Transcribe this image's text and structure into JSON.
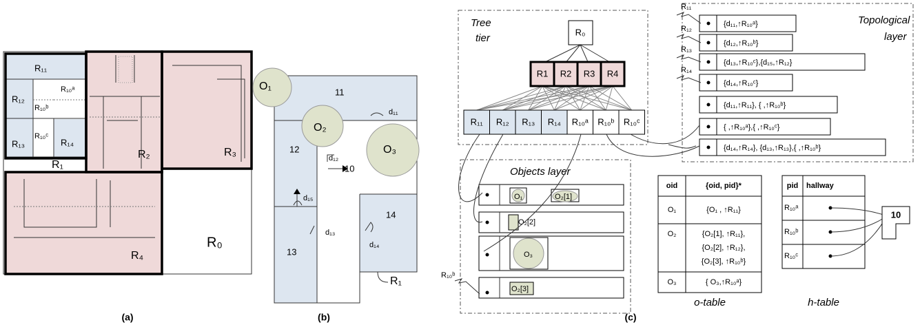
{
  "panel_a": {
    "caption": "(a)",
    "labels": [
      "R₁₁",
      "R₁₂",
      "R₁₀ᵇ",
      "R₁₀ᵃ",
      "R₁₃",
      "R₁₀ᶜ",
      "R₁₄",
      "R₁",
      "R₂",
      "R₃",
      "R₄",
      "R₀"
    ]
  },
  "panel_b": {
    "caption": "(b)",
    "labels": [
      "O₁",
      "11",
      "d₁₁",
      "O₂",
      "O₃",
      "12",
      "d₁₂",
      "10",
      "d₁₅",
      "14",
      "d₁₃",
      "d₁₄",
      "13",
      "R₁"
    ]
  },
  "panel_c": {
    "caption": "(c)",
    "tree_tier": {
      "title": [
        "Tree",
        "tier"
      ],
      "root": "R₀",
      "level1": [
        "R1",
        "R2",
        "R3",
        "R4"
      ],
      "leaves": [
        "R₁₁",
        "R₁₂",
        "R₁₃",
        "R₁₄",
        "R₁₀ᵃ",
        "R₁₀ᵇ",
        "R₁₀ᶜ"
      ]
    },
    "topological_layer": {
      "title": [
        "Topological",
        "layer"
      ],
      "pointers": [
        "R₁₁",
        "R₁₂",
        "R₁₃",
        "R₁₄"
      ],
      "entries": [
        "{d₁₁,↑R₁₀ᵃ}",
        "{d₁₂,↑R₁₀ᵇ}",
        "{d₁₃,↑R₁₀ᶜ},{d₁₅,↑R₁₂}",
        "{d₁₄,↑R₁₀ᶜ}",
        "{d₁₁,↑R₁₁}, { ,↑R₁₀ᵇ}",
        "{ ,↑R₁₀ᵃ},{ ,↑R₁₀ᶜ}",
        "{d₁₄,↑R₁₄}, {d₁₃,↑R₁₃},{ ,↑R₁₀ᵇ}"
      ]
    },
    "objects_layer": {
      "title": "Objects layer",
      "objects": [
        "O₁",
        "O₂[1]",
        "O₂[2]",
        "O₃",
        "O₂[3]"
      ],
      "pointer": "R₁₀ᵇ"
    },
    "o_table": {
      "caption": "o-table",
      "header": [
        "oid",
        "{oid, pid}*"
      ],
      "rows": [
        [
          "O₁",
          "{O₁ , ↑R₁₁}"
        ],
        [
          "O₂",
          [
            "{O₂[1], ↑R₁₁},",
            "{O₂[2], ↑R₁₂},",
            "{O₂[3], ↑R₁₀ᵇ}"
          ]
        ],
        [
          "O₃",
          "{ O₃,↑R₁₀ᵃ}"
        ]
      ]
    },
    "h_table": {
      "caption": "h-table",
      "header": [
        "pid",
        "hallway"
      ],
      "rows": [
        "R₁₀ᵃ",
        "R₁₀ᵇ",
        "R₁₀ᶜ"
      ],
      "target": "10"
    }
  }
}
